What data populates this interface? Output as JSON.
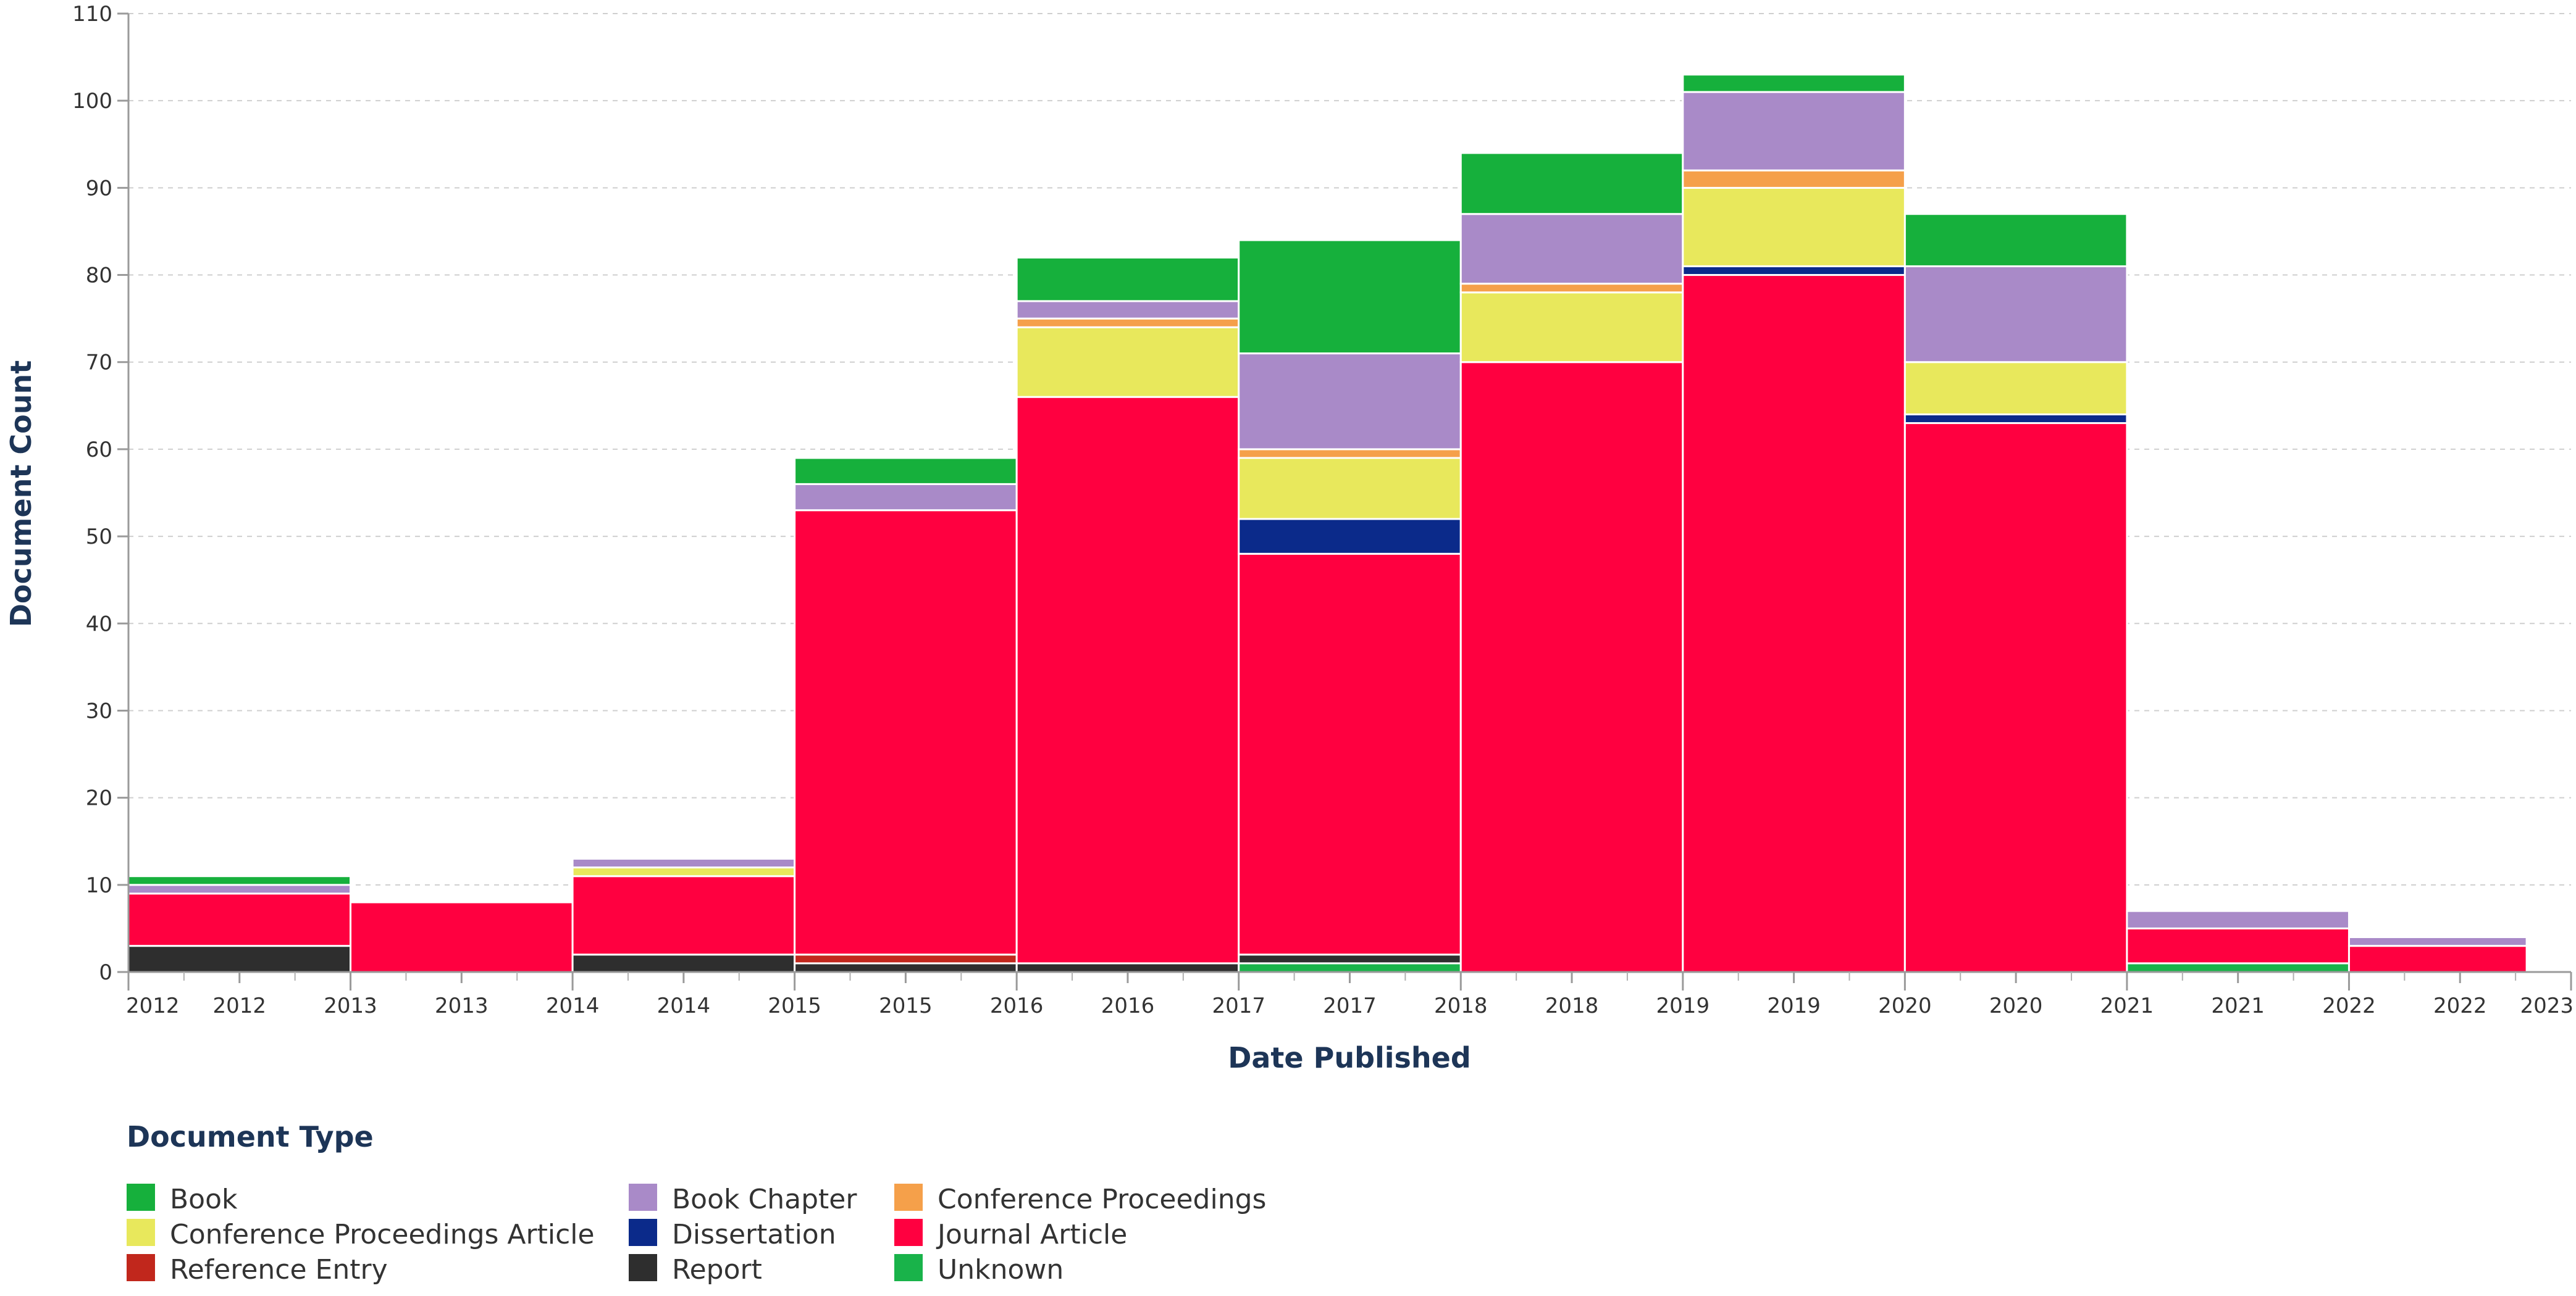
{
  "chart_data": {
    "type": "bar",
    "stacked": true,
    "xlabel": "Date Published",
    "ylabel": "Document Count",
    "ylim": [
      0,
      110
    ],
    "yticks": [
      0,
      10,
      20,
      30,
      40,
      50,
      60,
      70,
      80,
      90,
      100,
      110
    ],
    "grid": true,
    "x_tick_labels": [
      "2012",
      "2012",
      "2013",
      "2013",
      "2014",
      "2014",
      "2015",
      "2015",
      "2016",
      "2016",
      "2017",
      "2017",
      "2018",
      "2018",
      "2019",
      "2019",
      "2020",
      "2020",
      "2021",
      "2021",
      "2022",
      "2022",
      "2023"
    ],
    "bins": [
      {
        "start": 2012.0,
        "end": 2013.0
      },
      {
        "start": 2013.0,
        "end": 2014.0
      },
      {
        "start": 2014.0,
        "end": 2015.0
      },
      {
        "start": 2015.0,
        "end": 2016.0
      },
      {
        "start": 2016.0,
        "end": 2017.0
      },
      {
        "start": 2017.0,
        "end": 2018.0
      },
      {
        "start": 2018.0,
        "end": 2019.0
      },
      {
        "start": 2019.0,
        "end": 2020.0
      },
      {
        "start": 2020.0,
        "end": 2021.0
      },
      {
        "start": 2021.0,
        "end": 2022.0
      },
      {
        "start": 2022.0,
        "end": 2022.8
      }
    ],
    "stack_order": [
      "Unknown",
      "Report",
      "Reference Entry",
      "Journal Article",
      "Dissertation",
      "Conference Proceedings Article",
      "Conference Proceedings",
      "Book Chapter",
      "Book"
    ],
    "series": [
      {
        "name": "Unknown",
        "color": "#19b34a",
        "values": [
          0,
          0,
          0,
          0,
          0,
          1,
          0,
          0,
          0,
          1,
          0
        ]
      },
      {
        "name": "Report",
        "color": "#2e2e2e",
        "values": [
          3,
          0,
          2,
          1,
          1,
          1,
          0,
          0,
          0,
          0,
          0
        ]
      },
      {
        "name": "Reference Entry",
        "color": "#c1271c",
        "values": [
          0,
          0,
          0,
          1,
          0,
          0,
          0,
          0,
          0,
          0,
          0
        ]
      },
      {
        "name": "Journal Article",
        "color": "#ff0040",
        "values": [
          6,
          8,
          9,
          51,
          65,
          46,
          70,
          80,
          63,
          4,
          3
        ]
      },
      {
        "name": "Dissertation",
        "color": "#0b2a8a",
        "values": [
          0,
          0,
          0,
          0,
          0,
          4,
          0,
          1,
          1,
          0,
          0
        ]
      },
      {
        "name": "Conference Proceedings Article",
        "color": "#e8e85c",
        "values": [
          0,
          0,
          1,
          0,
          8,
          7,
          8,
          9,
          6,
          0,
          0
        ]
      },
      {
        "name": "Conference Proceedings",
        "color": "#f5a04a",
        "values": [
          0,
          0,
          0,
          0,
          1,
          1,
          1,
          2,
          0,
          0,
          0
        ]
      },
      {
        "name": "Book Chapter",
        "color": "#a98ac8",
        "values": [
          1,
          0,
          1,
          3,
          2,
          11,
          8,
          9,
          11,
          2,
          1
        ]
      },
      {
        "name": "Book",
        "color": "#16b03c",
        "values": [
          1,
          0,
          0,
          3,
          5,
          13,
          7,
          2,
          6,
          0,
          0
        ]
      }
    ]
  },
  "legend": {
    "title": "Document Type",
    "placement": "bottom-left",
    "items": [
      {
        "label": "Book",
        "color": "#16b03c"
      },
      {
        "label": "Book Chapter",
        "color": "#a98ac8"
      },
      {
        "label": "Conference Proceedings",
        "color": "#f5a04a"
      },
      {
        "label": "Conference Proceedings Article",
        "color": "#e8e85c"
      },
      {
        "label": "Dissertation",
        "color": "#0b2a8a"
      },
      {
        "label": "Journal Article",
        "color": "#ff0040"
      },
      {
        "label": "Reference Entry",
        "color": "#c1271c"
      },
      {
        "label": "Report",
        "color": "#2e2e2e"
      },
      {
        "label": "Unknown",
        "color": "#19b34a"
      }
    ]
  }
}
